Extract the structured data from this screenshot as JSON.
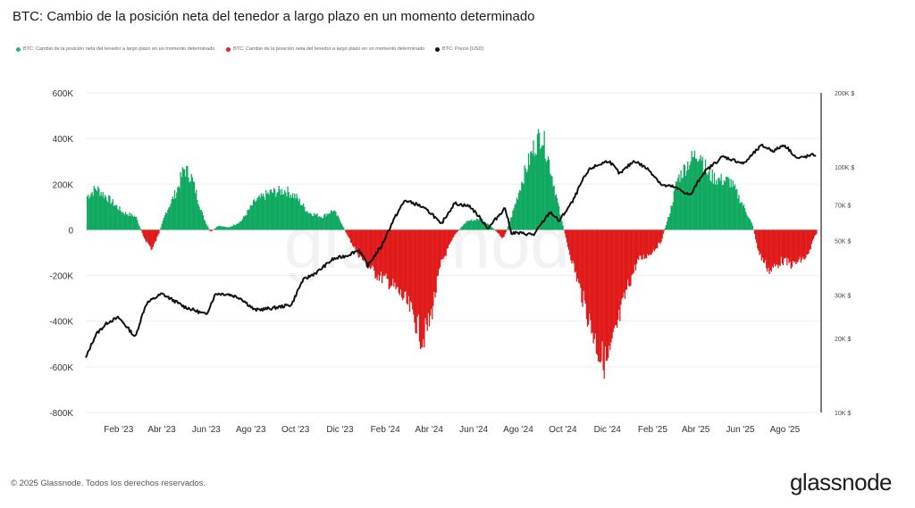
{
  "title": "BTC: Cambio de la posición neta del tenedor a largo plazo en un momento determinado",
  "legend": [
    {
      "label": "BTC: Cambio de la posición neta del tenedor a largo plazo en un momento determinado",
      "color": "#2eb36b"
    },
    {
      "label": "BTC: Cambio de la posición neta del tenedor a largo plazo en un momento determinado",
      "color": "#e02424"
    },
    {
      "label": "BTC: Precio [USD]",
      "color": "#111111"
    }
  ],
  "footer": "© 2025 Glassnode. Todos los derechos reservados.",
  "logo": "glassnode",
  "watermark": "glassnode",
  "colors": {
    "positive": "#0fa960",
    "negative": "#e01919",
    "price": "#111111"
  },
  "chart_data": {
    "type": "area",
    "x_tick_labels": [
      "Feb '23",
      "Abr '23",
      "Jun '23",
      "Ago '23",
      "Oct '23",
      "Dic '23",
      "Feb '24",
      "Abr '24",
      "Jun '24",
      "Ago '24",
      "Oct '24",
      "Dic '24",
      "Feb '25",
      "Abr '25",
      "Jun '25",
      "Ago '25"
    ],
    "x_range": [
      "2023-01-01",
      "2025-09-30"
    ],
    "y_left": {
      "ticks": [
        "600K",
        "400K",
        "200K",
        "0",
        "-200K",
        "-400K",
        "-600K",
        "-800K"
      ],
      "values": [
        600000,
        400000,
        200000,
        0,
        -200000,
        -400000,
        -600000,
        -800000
      ],
      "range": [
        -800000,
        600000
      ]
    },
    "y_right": {
      "scale": "log",
      "ticks": [
        "200K $",
        "100K $",
        "70K $",
        "50K $",
        "30K $",
        "20K $",
        "10K $"
      ],
      "values": [
        200000,
        100000,
        70000,
        50000,
        30000,
        20000,
        10000
      ],
      "range": [
        10000,
        200000
      ]
    },
    "net_position_change": [
      [
        "2023-01-01",
        150000
      ],
      [
        "2023-01-15",
        190000
      ],
      [
        "2023-02-01",
        140000
      ],
      [
        "2023-02-20",
        80000
      ],
      [
        "2023-03-10",
        60000
      ],
      [
        "2023-03-20",
        -30000
      ],
      [
        "2023-04-01",
        -90000
      ],
      [
        "2023-04-10",
        -20000
      ],
      [
        "2023-04-20",
        80000
      ],
      [
        "2023-05-05",
        180000
      ],
      [
        "2023-05-15",
        280000
      ],
      [
        "2023-05-25",
        240000
      ],
      [
        "2023-06-10",
        60000
      ],
      [
        "2023-06-20",
        -10000
      ],
      [
        "2023-07-01",
        20000
      ],
      [
        "2023-07-15",
        10000
      ],
      [
        "2023-08-01",
        40000
      ],
      [
        "2023-08-20",
        130000
      ],
      [
        "2023-09-10",
        170000
      ],
      [
        "2023-10-01",
        180000
      ],
      [
        "2023-10-15",
        150000
      ],
      [
        "2023-11-01",
        80000
      ],
      [
        "2023-11-20",
        60000
      ],
      [
        "2023-12-05",
        90000
      ],
      [
        "2023-12-15",
        40000
      ],
      [
        "2023-12-25",
        -30000
      ],
      [
        "2024-01-10",
        -120000
      ],
      [
        "2024-02-01",
        -200000
      ],
      [
        "2024-02-20",
        -240000
      ],
      [
        "2024-03-10",
        -310000
      ],
      [
        "2024-03-25",
        -400000
      ],
      [
        "2024-04-05",
        -500000
      ],
      [
        "2024-04-15",
        -420000
      ],
      [
        "2024-05-01",
        -150000
      ],
      [
        "2024-05-20",
        -20000
      ],
      [
        "2024-06-05",
        40000
      ],
      [
        "2024-06-25",
        50000
      ],
      [
        "2024-07-10",
        10000
      ],
      [
        "2024-07-25",
        -40000
      ],
      [
        "2024-08-05",
        60000
      ],
      [
        "2024-08-20",
        230000
      ],
      [
        "2024-09-05",
        380000
      ],
      [
        "2024-09-15",
        440000
      ],
      [
        "2024-09-25",
        320000
      ],
      [
        "2024-10-10",
        80000
      ],
      [
        "2024-10-20",
        -60000
      ],
      [
        "2024-11-05",
        -250000
      ],
      [
        "2024-11-20",
        -420000
      ],
      [
        "2024-12-05",
        -580000
      ],
      [
        "2024-12-15",
        -610000
      ],
      [
        "2024-12-25",
        -480000
      ],
      [
        "2025-01-10",
        -270000
      ],
      [
        "2025-01-25",
        -140000
      ],
      [
        "2025-02-10",
        -110000
      ],
      [
        "2025-02-25",
        -60000
      ],
      [
        "2025-03-10",
        80000
      ],
      [
        "2025-03-20",
        230000
      ],
      [
        "2025-04-05",
        310000
      ],
      [
        "2025-04-20",
        360000
      ],
      [
        "2025-05-01",
        250000
      ],
      [
        "2025-05-15",
        230000
      ],
      [
        "2025-06-01",
        220000
      ],
      [
        "2025-06-20",
        100000
      ],
      [
        "2025-07-01",
        20000
      ],
      [
        "2025-07-10",
        -110000
      ],
      [
        "2025-07-25",
        -190000
      ],
      [
        "2025-08-10",
        -140000
      ],
      [
        "2025-08-25",
        -160000
      ],
      [
        "2025-09-15",
        -120000
      ],
      [
        "2025-09-25",
        -20000
      ]
    ],
    "price_usd": [
      [
        "2023-01-01",
        16600
      ],
      [
        "2023-01-15",
        20800
      ],
      [
        "2023-02-01",
        23400
      ],
      [
        "2023-02-15",
        24300
      ],
      [
        "2023-03-10",
        20200
      ],
      [
        "2023-03-25",
        27800
      ],
      [
        "2023-04-15",
        30400
      ],
      [
        "2023-05-15",
        27000
      ],
      [
        "2023-06-15",
        25000
      ],
      [
        "2023-06-28",
        30500
      ],
      [
        "2023-07-15",
        30300
      ],
      [
        "2023-08-01",
        29200
      ],
      [
        "2023-08-20",
        26100
      ],
      [
        "2023-09-15",
        26600
      ],
      [
        "2023-10-10",
        27500
      ],
      [
        "2023-10-25",
        34500
      ],
      [
        "2023-11-15",
        37500
      ],
      [
        "2023-12-05",
        42000
      ],
      [
        "2023-12-25",
        43600
      ],
      [
        "2024-01-10",
        46000
      ],
      [
        "2024-01-22",
        39500
      ],
      [
        "2024-02-10",
        47500
      ],
      [
        "2024-02-28",
        62000
      ],
      [
        "2024-03-13",
        73000
      ],
      [
        "2024-04-01",
        69800
      ],
      [
        "2024-04-20",
        64000
      ],
      [
        "2024-05-01",
        58000
      ],
      [
        "2024-05-20",
        71000
      ],
      [
        "2024-06-10",
        69000
      ],
      [
        "2024-07-05",
        56000
      ],
      [
        "2024-07-28",
        68000
      ],
      [
        "2024-08-05",
        54000
      ],
      [
        "2024-09-06",
        53000
      ],
      [
        "2024-09-28",
        65500
      ],
      [
        "2024-10-10",
        60000
      ],
      [
        "2024-10-29",
        72500
      ],
      [
        "2024-11-12",
        89000
      ],
      [
        "2024-11-22",
        98500
      ],
      [
        "2024-12-17",
        106000
      ],
      [
        "2025-01-01",
        93500
      ],
      [
        "2025-01-21",
        106000
      ],
      [
        "2025-02-10",
        97000
      ],
      [
        "2025-02-28",
        84000
      ],
      [
        "2025-03-15",
        83000
      ],
      [
        "2025-04-08",
        76500
      ],
      [
        "2025-04-25",
        94000
      ],
      [
        "2025-05-22",
        110000
      ],
      [
        "2025-06-20",
        103000
      ],
      [
        "2025-07-14",
        122000
      ],
      [
        "2025-07-31",
        116000
      ],
      [
        "2025-08-14",
        123000
      ],
      [
        "2025-09-01",
        108000
      ],
      [
        "2025-09-25",
        112000
      ]
    ],
    "grid": true,
    "legend_position": "top"
  }
}
